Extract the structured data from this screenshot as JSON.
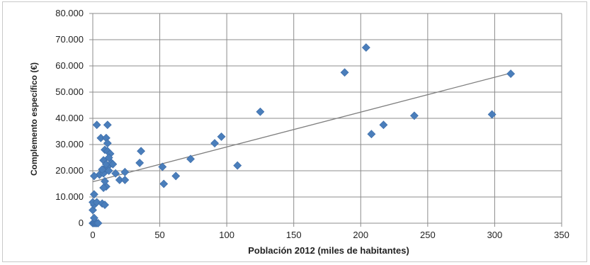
{
  "chart_data": {
    "type": "scatter",
    "title": "",
    "xlabel": "Población 2012 (miles de habitantes)",
    "ylabel": "Complemento específico (€)",
    "xlim": [
      0,
      350
    ],
    "ylim": [
      0,
      80000
    ],
    "x_ticks": [
      0,
      50,
      100,
      150,
      200,
      250,
      300,
      350
    ],
    "y_ticks": [
      0,
      10000,
      20000,
      30000,
      40000,
      50000,
      60000,
      70000,
      80000
    ],
    "x_tick_labels": [
      "0",
      "50",
      "100",
      "150",
      "200",
      "250",
      "300",
      "350"
    ],
    "y_tick_labels": [
      "0",
      "10.000",
      "20.000",
      "30.000",
      "40.000",
      "50.000",
      "60.000",
      "70.000",
      "80.000"
    ],
    "grid": true,
    "marker_color": "#4a7ebb",
    "trendline_color": "#7f7f7f",
    "trendline": {
      "x": [
        0,
        310
      ],
      "y": [
        15800,
        57000
      ]
    },
    "series": [
      {
        "points": [
          [
            0,
            0
          ],
          [
            1,
            0
          ],
          [
            2,
            0
          ],
          [
            3,
            0
          ],
          [
            4,
            0
          ],
          [
            1,
            2000
          ],
          [
            0,
            5000
          ],
          [
            1,
            7000
          ],
          [
            0,
            8000
          ],
          [
            3,
            8000
          ],
          [
            1,
            11000
          ],
          [
            5,
            18500
          ],
          [
            1,
            18000
          ],
          [
            3,
            37500
          ],
          [
            7,
            7500
          ],
          [
            9,
            7000
          ],
          [
            10,
            14000
          ],
          [
            8,
            13500
          ],
          [
            9,
            16000
          ],
          [
            8,
            19000
          ],
          [
            9,
            21000
          ],
          [
            11,
            21500
          ],
          [
            12,
            20000
          ],
          [
            7,
            20500
          ],
          [
            8,
            24000
          ],
          [
            10,
            22500
          ],
          [
            9,
            28000
          ],
          [
            11,
            27500
          ],
          [
            13,
            26500
          ],
          [
            12,
            25000
          ],
          [
            14,
            23000
          ],
          [
            15,
            22500
          ],
          [
            6,
            32500
          ],
          [
            10,
            32500
          ],
          [
            11,
            30500
          ],
          [
            11,
            37500
          ],
          [
            17,
            19000
          ],
          [
            20,
            16500
          ],
          [
            24,
            16500
          ],
          [
            24,
            19500
          ],
          [
            35,
            23000
          ],
          [
            36,
            27500
          ],
          [
            52,
            21500
          ],
          [
            53,
            15000
          ],
          [
            62,
            18000
          ],
          [
            73,
            24500
          ],
          [
            91,
            30500
          ],
          [
            96,
            33000
          ],
          [
            108,
            22000
          ],
          [
            125,
            42500
          ],
          [
            188,
            57500
          ],
          [
            204,
            67000
          ],
          [
            208,
            34000
          ],
          [
            217,
            37500
          ],
          [
            240,
            41000
          ],
          [
            298,
            41500
          ],
          [
            312,
            57000
          ]
        ]
      }
    ]
  }
}
